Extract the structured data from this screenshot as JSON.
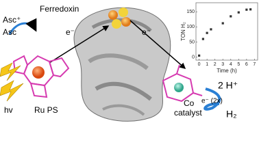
{
  "labels": {
    "ferredoxin": "Ferredoxin",
    "asc_plus": "Asc⁺",
    "asc": "Asc",
    "e_left": "e⁻",
    "e_right": "e⁻",
    "hv": "hv",
    "ru_ps": "Ru PS",
    "co": "Co",
    "catalyst": "catalyst",
    "protons": "2 H⁺",
    "electrons": "e⁻ (2x)",
    "h2": "H₂"
  },
  "chart_data": {
    "type": "scatter",
    "x_label": "Time (h)",
    "y_label": "TON H₂",
    "x": [
      0,
      0.5,
      1,
      1.5,
      3,
      4,
      5,
      6,
      6.5
    ],
    "values": [
      5,
      60,
      80,
      92,
      112,
      135,
      148,
      157,
      158
    ],
    "color": "#333333",
    "xlim": [
      -0.4,
      7.4
    ],
    "xticks": [
      0,
      1,
      2,
      3,
      4,
      5,
      6,
      7
    ],
    "ylim": [
      -10,
      180
    ],
    "yticks": [
      0,
      50,
      100,
      150
    ]
  }
}
